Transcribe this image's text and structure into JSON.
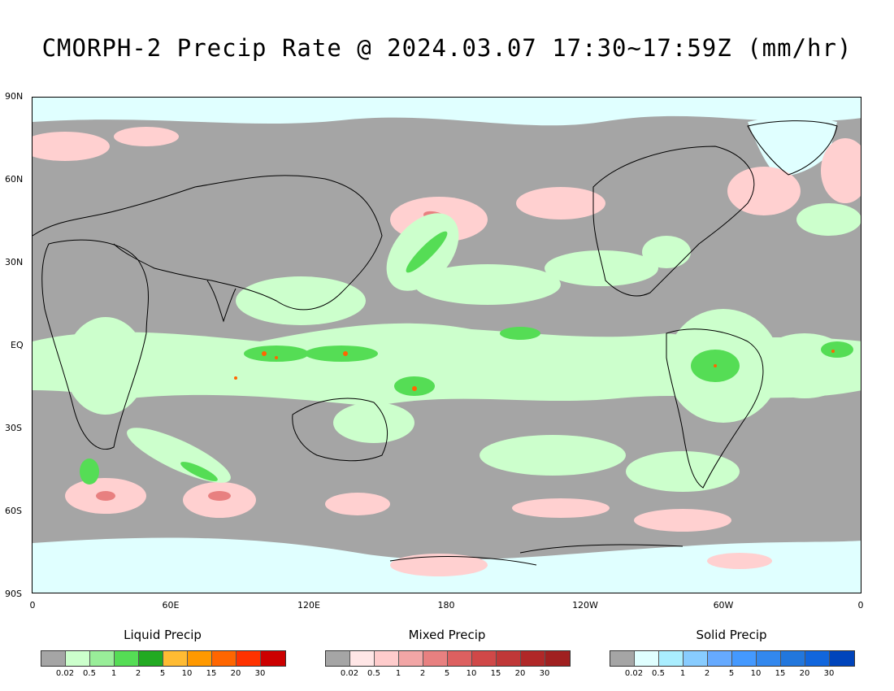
{
  "title": "CMORPH-2 Precip Rate @ 2024.03.07 17:30~17:59Z (mm/hr)",
  "y_axis_labels": [
    "90N",
    "60N",
    "30N",
    "EQ",
    "30S",
    "60S",
    "90S"
  ],
  "x_axis_labels": [
    "0",
    "60E",
    "120E",
    "180",
    "120W",
    "60W",
    "0"
  ],
  "legends": [
    {
      "title": "Liquid Precip",
      "ticks": [
        "0.02",
        "0.5",
        "1",
        "2",
        "5",
        "10",
        "15",
        "20",
        "30"
      ],
      "colors": [
        "#a5a5a5",
        "#ccffcc",
        "#99ee99",
        "#55dd55",
        "#22aa22",
        "#ffbb33",
        "#ff9900",
        "#ff6600",
        "#ff3300",
        "#cc0000"
      ]
    },
    {
      "title": "Mixed Precip",
      "ticks": [
        "0.02",
        "0.5",
        "1",
        "2",
        "5",
        "10",
        "15",
        "20",
        "30"
      ],
      "colors": [
        "#a5a5a5",
        "#ffe6e6",
        "#ffcccc",
        "#f2a6a6",
        "#e88080",
        "#dd6060",
        "#d04848",
        "#c03838",
        "#b02828",
        "#a02020"
      ]
    },
    {
      "title": "Solid Precip",
      "ticks": [
        "0.02",
        "0.5",
        "1",
        "2",
        "5",
        "10",
        "15",
        "20",
        "30"
      ],
      "colors": [
        "#a5a5a5",
        "#e0ffff",
        "#aaeeff",
        "#88ccff",
        "#66aaff",
        "#4499ff",
        "#3388ee",
        "#2277dd",
        "#1166dd",
        "#0044bb"
      ]
    }
  ],
  "colors": {
    "no_precip": "#a5a5a5",
    "background": "#ffffff",
    "coastline": "#000000"
  }
}
